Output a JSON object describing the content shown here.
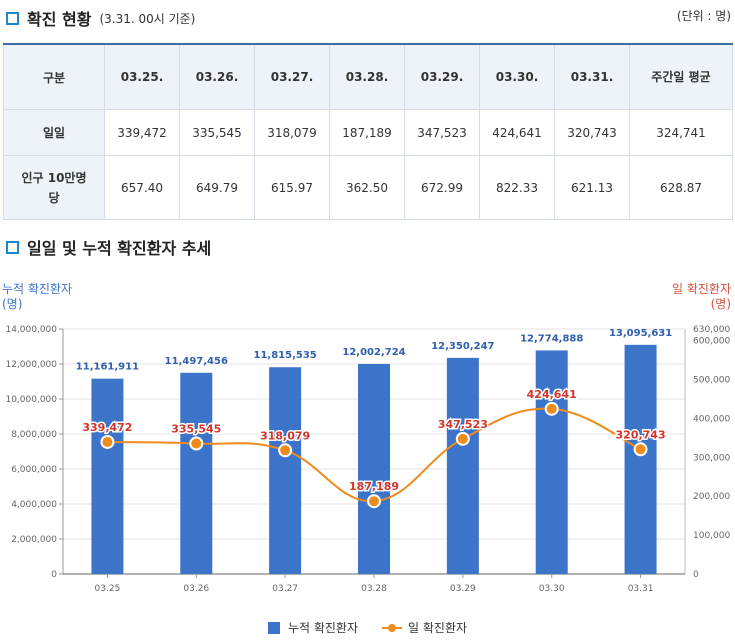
{
  "section1": {
    "title": "확진 현황",
    "subtitle": "(3.31. 00시 기준)",
    "unit": "(단위 : 명)"
  },
  "table": {
    "headers": [
      "구분",
      "03.25.",
      "03.26.",
      "03.27.",
      "03.28.",
      "03.29.",
      "03.30.",
      "03.31.",
      "주간일 평균"
    ],
    "rows": [
      {
        "label": "일일",
        "values": [
          "339,472",
          "335,545",
          "318,079",
          "187,189",
          "347,523",
          "424,641",
          "320,743",
          "324,741"
        ]
      },
      {
        "label": "인구 10만명당",
        "values": [
          "657.40",
          "649.79",
          "615.97",
          "362.50",
          "672.99",
          "822.33",
          "621.13",
          "628.87"
        ]
      }
    ]
  },
  "section2": {
    "title": "일일 및 누적 확진환자 추세"
  },
  "chart_data": {
    "type": "bar",
    "categories": [
      "03.25",
      "03.26",
      "03.27",
      "03.28",
      "03.29",
      "03.30",
      "03.31"
    ],
    "series": [
      {
        "name": "누적 확진환자",
        "type": "bar",
        "axis": "left",
        "color": "#3c74c9",
        "values": [
          11161911,
          11497456,
          11815535,
          12002724,
          12350247,
          12774888,
          13095631
        ],
        "labels": [
          "11,161,911",
          "11,497,456",
          "11,815,535",
          "12,002,724",
          "12,350,247",
          "12,774,888",
          "13,095,631"
        ]
      },
      {
        "name": "일 확진환자",
        "type": "line",
        "axis": "right",
        "color": "#ef8a1c",
        "values": [
          339472,
          335545,
          318079,
          187189,
          347523,
          424641,
          320743
        ],
        "labels": [
          "339,472",
          "335,545",
          "318,079",
          "187,189",
          "347,523",
          "424,641",
          "320,743"
        ]
      }
    ],
    "left_axis": {
      "title": [
        "누적 확진환자",
        "(명)"
      ],
      "range": [
        0,
        14000000
      ],
      "ticks": [
        0,
        2000000,
        4000000,
        6000000,
        8000000,
        10000000,
        12000000,
        14000000
      ],
      "tick_labels": [
        "0",
        "2,000,000",
        "4,000,000",
        "6,000,000",
        "8,000,000",
        "10,000,000",
        "12,000,000",
        "14,000,000"
      ]
    },
    "right_axis": {
      "title": [
        "일 확진환자",
        "(명)"
      ],
      "range": [
        0,
        630000
      ],
      "ticks": [
        0,
        100000,
        200000,
        300000,
        400000,
        500000,
        600000,
        630000
      ],
      "tick_labels": [
        "0",
        "100,000",
        "200,000",
        "300,000",
        "400,000",
        "500,000",
        "600,000",
        "630,000"
      ]
    },
    "grid": true,
    "legend": "bottom"
  },
  "legend": {
    "bar": "누적 확진환자",
    "line": "일 확진환자"
  }
}
